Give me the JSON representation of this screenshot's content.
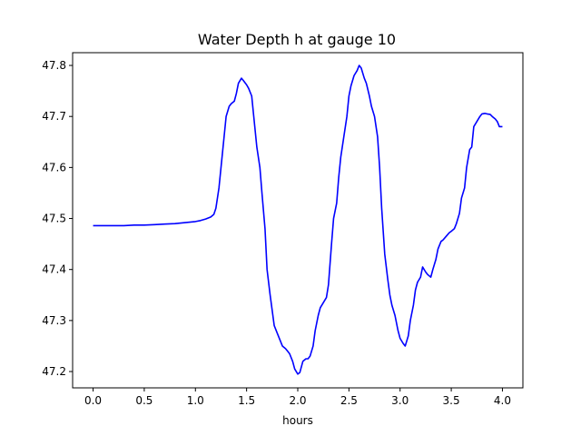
{
  "chart_data": {
    "type": "line",
    "title": "Water Depth h at gauge 10",
    "xlabel": "hours",
    "ylabel": "",
    "xlim": [
      -0.2,
      4.2
    ],
    "ylim": [
      47.168,
      47.825
    ],
    "xticks": [
      0.0,
      0.5,
      1.0,
      1.5,
      2.0,
      2.5,
      3.0,
      3.5,
      4.0
    ],
    "xtick_labels": [
      "0.0",
      "0.5",
      "1.0",
      "1.5",
      "2.0",
      "2.5",
      "3.0",
      "3.5",
      "4.0"
    ],
    "yticks": [
      47.2,
      47.3,
      47.4,
      47.5,
      47.6,
      47.7,
      47.8
    ],
    "ytick_labels": [
      "47.2",
      "47.3",
      "47.4",
      "47.5",
      "47.6",
      "47.7",
      "47.8"
    ],
    "grid": false,
    "series": [
      {
        "color": "#0000ff",
        "x": [
          0.0,
          0.1,
          0.2,
          0.3,
          0.4,
          0.5,
          0.6,
          0.7,
          0.8,
          0.9,
          1.0,
          1.05,
          1.1,
          1.15,
          1.18,
          1.2,
          1.23,
          1.25,
          1.28,
          1.3,
          1.33,
          1.35,
          1.38,
          1.4,
          1.42,
          1.45,
          1.47,
          1.5,
          1.52,
          1.55,
          1.58,
          1.6,
          1.63,
          1.65,
          1.68,
          1.7,
          1.73,
          1.75,
          1.77,
          1.8,
          1.82,
          1.85,
          1.88,
          1.9,
          1.92,
          1.95,
          1.97,
          2.0,
          2.02,
          2.05,
          2.08,
          2.1,
          2.12,
          2.15,
          2.17,
          2.2,
          2.22,
          2.25,
          2.28,
          2.3,
          2.33,
          2.35,
          2.38,
          2.4,
          2.42,
          2.45,
          2.48,
          2.5,
          2.52,
          2.55,
          2.58,
          2.6,
          2.62,
          2.65,
          2.67,
          2.7,
          2.72,
          2.75,
          2.78,
          2.8,
          2.82,
          2.85,
          2.88,
          2.9,
          2.92,
          2.95,
          2.98,
          3.0,
          3.03,
          3.05,
          3.08,
          3.1,
          3.13,
          3.15,
          3.17,
          3.2,
          3.22,
          3.25,
          3.27,
          3.3,
          3.32,
          3.35,
          3.37,
          3.4,
          3.42,
          3.45,
          3.48,
          3.5,
          3.53,
          3.55,
          3.58,
          3.6,
          3.63,
          3.65,
          3.68,
          3.7,
          3.72,
          3.75,
          3.78,
          3.8,
          3.83,
          3.85,
          3.88,
          3.9,
          3.93,
          3.95,
          3.97,
          4.0
        ],
        "y": [
          47.486,
          47.486,
          47.486,
          47.486,
          47.487,
          47.487,
          47.488,
          47.489,
          47.49,
          47.492,
          47.494,
          47.496,
          47.499,
          47.503,
          47.508,
          47.52,
          47.56,
          47.6,
          47.66,
          47.7,
          47.72,
          47.725,
          47.73,
          47.745,
          47.765,
          47.775,
          47.77,
          47.762,
          47.755,
          47.74,
          47.68,
          47.64,
          47.6,
          47.55,
          47.48,
          47.4,
          47.35,
          47.32,
          47.29,
          47.275,
          47.265,
          47.25,
          47.245,
          47.24,
          47.235,
          47.22,
          47.205,
          47.195,
          47.198,
          47.22,
          47.225,
          47.225,
          47.23,
          47.25,
          47.28,
          47.31,
          47.325,
          47.335,
          47.345,
          47.37,
          47.45,
          47.5,
          47.53,
          47.58,
          47.62,
          47.66,
          47.7,
          47.74,
          47.76,
          47.78,
          47.79,
          47.8,
          47.795,
          47.775,
          47.765,
          47.74,
          47.72,
          47.7,
          47.66,
          47.6,
          47.52,
          47.43,
          47.38,
          47.35,
          47.33,
          47.31,
          47.28,
          47.265,
          47.255,
          47.25,
          47.27,
          47.3,
          47.33,
          47.36,
          47.375,
          47.385,
          47.405,
          47.395,
          47.39,
          47.385,
          47.4,
          47.42,
          47.44,
          47.455,
          47.458,
          47.465,
          47.472,
          47.475,
          47.48,
          47.49,
          47.51,
          47.54,
          47.56,
          47.6,
          47.635,
          47.64,
          47.68,
          47.69,
          47.7,
          47.705,
          47.706,
          47.705,
          47.704,
          47.7,
          47.695,
          47.69,
          47.68,
          47.68
        ]
      }
    ]
  }
}
